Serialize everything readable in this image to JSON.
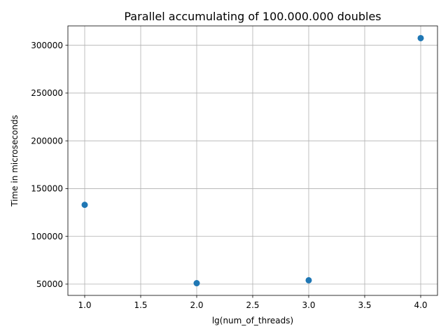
{
  "chart_data": {
    "type": "scatter",
    "title": "Parallel accumulating of 100.000.000 doubles",
    "xlabel": "lg(num_of_threads)",
    "ylabel": "Time in microseconds",
    "x": [
      1.0,
      2.0,
      3.0,
      4.0
    ],
    "y": [
      133000,
      51000,
      54000,
      307500
    ],
    "xlim": [
      0.85,
      4.15
    ],
    "ylim": [
      38200,
      320300
    ],
    "xticks": [
      1.0,
      1.5,
      2.0,
      2.5,
      3.0,
      3.5,
      4.0
    ],
    "xtick_labels": [
      "1.0",
      "1.5",
      "2.0",
      "2.5",
      "3.0",
      "3.5",
      "4.0"
    ],
    "yticks": [
      50000,
      100000,
      150000,
      200000,
      250000,
      300000
    ],
    "ytick_labels": [
      "50000",
      "100000",
      "150000",
      "200000",
      "250000",
      "300000"
    ],
    "grid": true,
    "marker_color": "#1f77b4"
  }
}
